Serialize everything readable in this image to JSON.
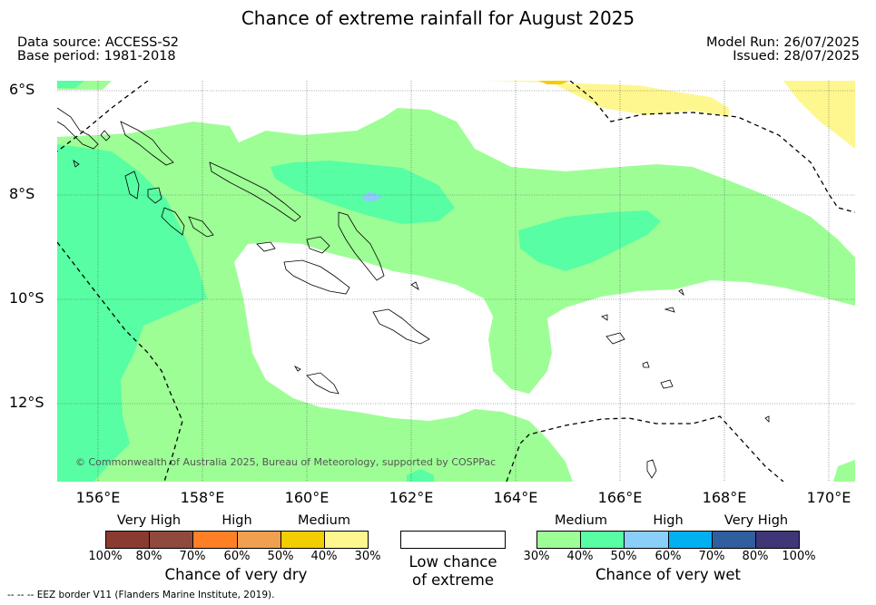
{
  "title": "Chance of extreme rainfall for August 2025",
  "meta": {
    "data_source": "Data source: ACCESS-S2",
    "base_period": "Base period: 1981-2018",
    "model_run": "Model Run: 26/07/2025",
    "issued": "Issued: 28/07/2025"
  },
  "map": {
    "lat_labels": [
      "6°S",
      "8°S",
      "10°S",
      "12°S"
    ],
    "lon_labels": [
      "156°E",
      "158°E",
      "160°E",
      "162°E",
      "164°E",
      "166°E",
      "168°E",
      "170°E"
    ],
    "copyright": "© Commonwealth of Australia 2025, Bureau of Meteorology, supported by COSPPac",
    "colors": {
      "wet_medium": "#9efe96",
      "wet_high": "#57fea3",
      "wet_very_high_light": "#8acefa",
      "dry_medium": "#fef78f",
      "dry_medium_dark": "#f2cd00",
      "eez_line": "#000000"
    }
  },
  "legend": {
    "dry": {
      "categories": [
        "Very High",
        "High",
        "Medium"
      ],
      "percent_ticks": [
        "100%",
        "80%",
        "70%",
        "60%",
        "50%",
        "40%",
        "30%"
      ],
      "colors": [
        "#8b3a32",
        "#8f4a3d",
        "#fe7f26",
        "#f0a04e",
        "#f2cd00",
        "#fef78f"
      ],
      "title": "Chance of very dry"
    },
    "low": {
      "title_line1": "Low chance",
      "title_line2": "of extreme"
    },
    "wet": {
      "categories": [
        "Medium",
        "High",
        "Very High"
      ],
      "percent_ticks": [
        "30%",
        "40%",
        "50%",
        "60%",
        "70%",
        "80%",
        "100%"
      ],
      "colors": [
        "#9efe96",
        "#57fea3",
        "#8acefa",
        "#00b0f0",
        "#2f5f9e",
        "#3e3677"
      ],
      "title": "Chance of very wet"
    }
  },
  "footer": "--  --  -- EEZ border V11 (Flanders Marine Institute, 2019)."
}
